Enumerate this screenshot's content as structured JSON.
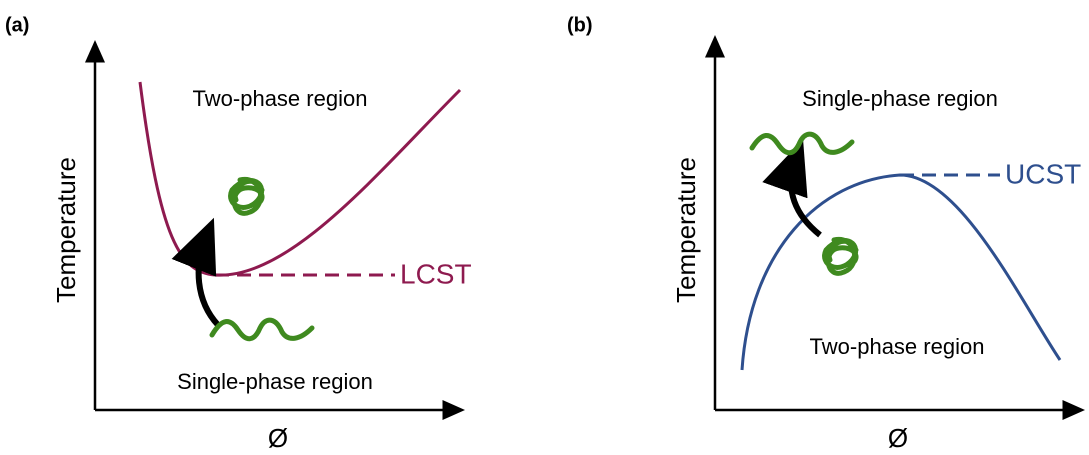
{
  "panels": [
    {
      "label": "(a)",
      "upper_region": "Two-phase region",
      "lower_region": "Single-phase region",
      "y_axis": "Temperature",
      "x_axis": "Ø",
      "critical": "LCST"
    },
    {
      "label": "(b)",
      "upper_region": "Single-phase region",
      "lower_region": "Two-phase region",
      "y_axis": "Temperature",
      "x_axis": "Ø",
      "critical": "UCST"
    }
  ]
}
